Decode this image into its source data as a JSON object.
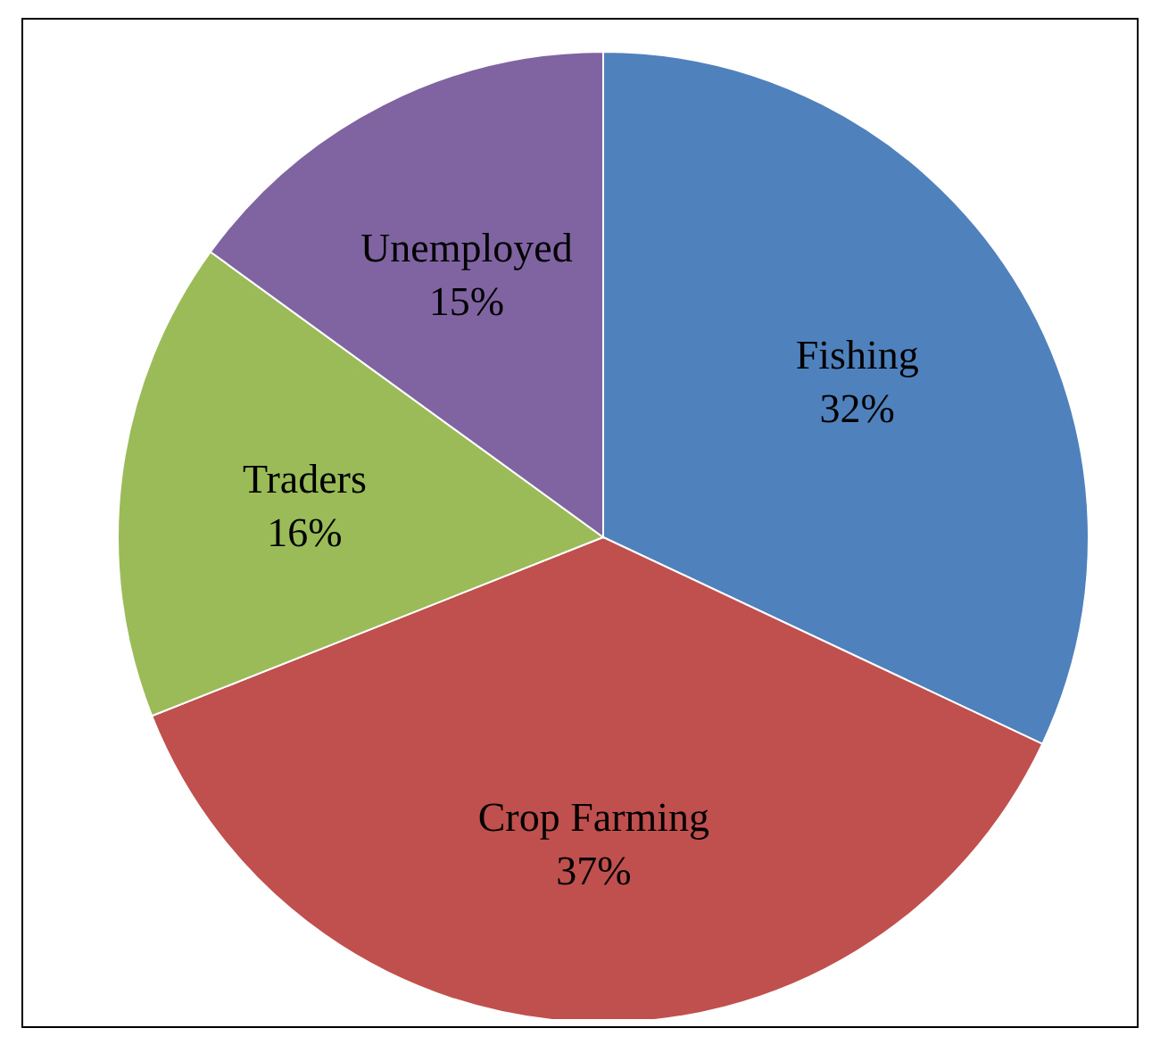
{
  "chart_data": {
    "type": "pie",
    "categories": [
      "Fishing",
      "Crop Farming",
      "Traders",
      "Unemployed"
    ],
    "values": [
      32,
      37,
      16,
      15
    ],
    "colors": [
      "#4f81bd",
      "#c0504d",
      "#9bbb59",
      "#8064a2"
    ],
    "value_labels": [
      "32%",
      "37%",
      "16%",
      "15%"
    ],
    "legend": false
  }
}
